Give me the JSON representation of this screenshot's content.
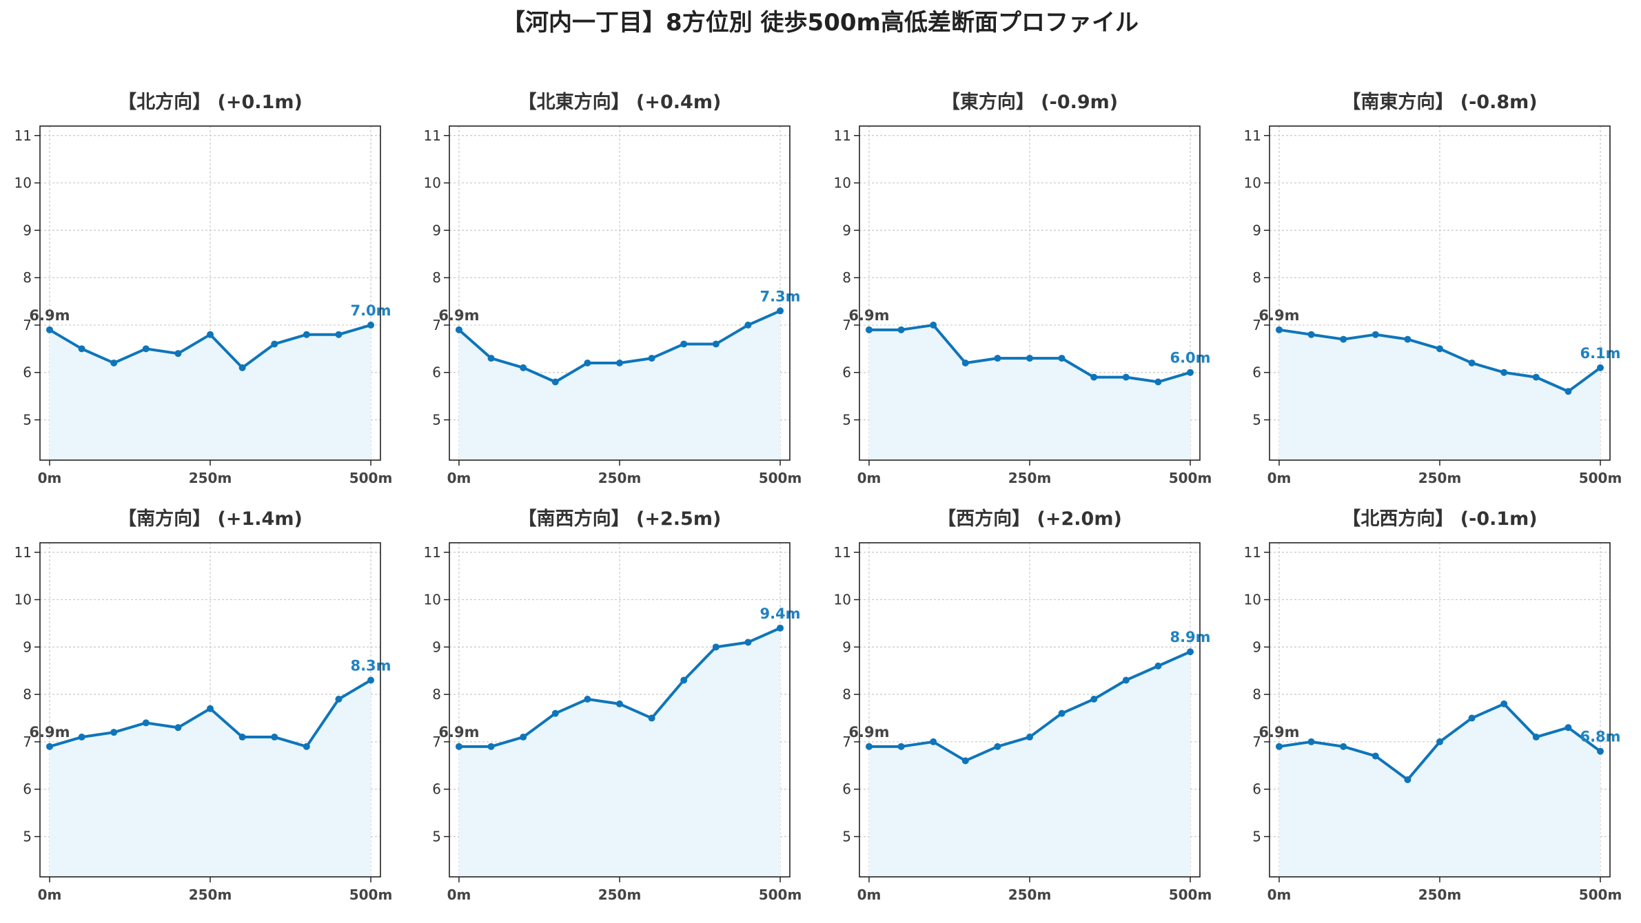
{
  "page_title": "【河内一丁目】8方位別 徒歩500m高低差断面プロファイル",
  "colors": {
    "line": "#0E75BA",
    "fill": "#EAF6FC",
    "end_label": "#1F82C1",
    "grid": "#C8C8C8",
    "axis": "#222222"
  },
  "chart_data": [
    {
      "type": "line",
      "title": "【北方向】 (+0.1m)",
      "x": [
        0,
        50,
        100,
        150,
        200,
        250,
        300,
        350,
        400,
        450,
        500
      ],
      "values": [
        6.9,
        6.5,
        6.2,
        6.5,
        6.4,
        6.8,
        6.1,
        6.6,
        6.8,
        6.8,
        7.0
      ],
      "start_label": "6.9m",
      "end_label": "7.0m",
      "xticks": [
        "0m",
        "250m",
        "500m"
      ],
      "yticks": [
        5,
        6,
        7,
        8,
        9,
        10,
        11
      ],
      "ylim": [
        4.15,
        11.2
      ],
      "xlim": [
        -15,
        515
      ],
      "grid": true
    },
    {
      "type": "line",
      "title": "【北東方向】 (+0.4m)",
      "x": [
        0,
        50,
        100,
        150,
        200,
        250,
        300,
        350,
        400,
        450,
        500
      ],
      "values": [
        6.9,
        6.3,
        6.1,
        5.8,
        6.2,
        6.2,
        6.3,
        6.6,
        6.6,
        7.0,
        7.3
      ],
      "start_label": "6.9m",
      "end_label": "7.3m",
      "xticks": [
        "0m",
        "250m",
        "500m"
      ],
      "yticks": [
        5,
        6,
        7,
        8,
        9,
        10,
        11
      ],
      "ylim": [
        4.15,
        11.2
      ],
      "xlim": [
        -15,
        515
      ],
      "grid": true
    },
    {
      "type": "line",
      "title": "【東方向】 (-0.9m)",
      "x": [
        0,
        50,
        100,
        150,
        200,
        250,
        300,
        350,
        400,
        450,
        500
      ],
      "values": [
        6.9,
        6.9,
        7.0,
        6.2,
        6.3,
        6.3,
        6.3,
        5.9,
        5.9,
        5.8,
        6.0
      ],
      "start_label": "6.9m",
      "end_label": "6.0m",
      "xticks": [
        "0m",
        "250m",
        "500m"
      ],
      "yticks": [
        5,
        6,
        7,
        8,
        9,
        10,
        11
      ],
      "ylim": [
        4.15,
        11.2
      ],
      "xlim": [
        -15,
        515
      ],
      "grid": true
    },
    {
      "type": "line",
      "title": "【南東方向】 (-0.8m)",
      "x": [
        0,
        50,
        100,
        150,
        200,
        250,
        300,
        350,
        400,
        450,
        500
      ],
      "values": [
        6.9,
        6.8,
        6.7,
        6.8,
        6.7,
        6.5,
        6.2,
        6.0,
        5.9,
        5.6,
        6.1
      ],
      "start_label": "6.9m",
      "end_label": "6.1m",
      "xticks": [
        "0m",
        "250m",
        "500m"
      ],
      "yticks": [
        5,
        6,
        7,
        8,
        9,
        10,
        11
      ],
      "ylim": [
        4.15,
        11.2
      ],
      "xlim": [
        -15,
        515
      ],
      "grid": true
    },
    {
      "type": "line",
      "title": "【南方向】 (+1.4m)",
      "x": [
        0,
        50,
        100,
        150,
        200,
        250,
        300,
        350,
        400,
        450,
        500
      ],
      "values": [
        6.9,
        7.1,
        7.2,
        7.4,
        7.3,
        7.7,
        7.1,
        7.1,
        6.9,
        7.9,
        8.3
      ],
      "start_label": "6.9m",
      "end_label": "8.3m",
      "xticks": [
        "0m",
        "250m",
        "500m"
      ],
      "yticks": [
        5,
        6,
        7,
        8,
        9,
        10,
        11
      ],
      "ylim": [
        4.15,
        11.2
      ],
      "xlim": [
        -15,
        515
      ],
      "grid": true
    },
    {
      "type": "line",
      "title": "【南西方向】 (+2.5m)",
      "x": [
        0,
        50,
        100,
        150,
        200,
        250,
        300,
        350,
        400,
        450,
        500
      ],
      "values": [
        6.9,
        6.9,
        7.1,
        7.6,
        7.9,
        7.8,
        7.5,
        8.3,
        9.0,
        9.1,
        9.4
      ],
      "start_label": "6.9m",
      "end_label": "9.4m",
      "xticks": [
        "0m",
        "250m",
        "500m"
      ],
      "yticks": [
        5,
        6,
        7,
        8,
        9,
        10,
        11
      ],
      "ylim": [
        4.15,
        11.2
      ],
      "xlim": [
        -15,
        515
      ],
      "grid": true
    },
    {
      "type": "line",
      "title": "【西方向】 (+2.0m)",
      "x": [
        0,
        50,
        100,
        150,
        200,
        250,
        300,
        350,
        400,
        450,
        500
      ],
      "values": [
        6.9,
        6.9,
        7.0,
        6.6,
        6.9,
        7.1,
        7.6,
        7.9,
        8.3,
        8.6,
        8.9
      ],
      "start_label": "6.9m",
      "end_label": "8.9m",
      "xticks": [
        "0m",
        "250m",
        "500m"
      ],
      "yticks": [
        5,
        6,
        7,
        8,
        9,
        10,
        11
      ],
      "ylim": [
        4.15,
        11.2
      ],
      "xlim": [
        -15,
        515
      ],
      "grid": true
    },
    {
      "type": "line",
      "title": "【北西方向】 (-0.1m)",
      "x": [
        0,
        50,
        100,
        150,
        200,
        250,
        300,
        350,
        400,
        450,
        500
      ],
      "values": [
        6.9,
        7.0,
        6.9,
        6.7,
        6.2,
        7.0,
        7.5,
        7.8,
        7.1,
        7.3,
        6.8
      ],
      "start_label": "6.9m",
      "end_label": "6.8m",
      "xticks": [
        "0m",
        "250m",
        "500m"
      ],
      "yticks": [
        5,
        6,
        7,
        8,
        9,
        10,
        11
      ],
      "ylim": [
        4.15,
        11.2
      ],
      "xlim": [
        -15,
        515
      ],
      "grid": true
    }
  ]
}
